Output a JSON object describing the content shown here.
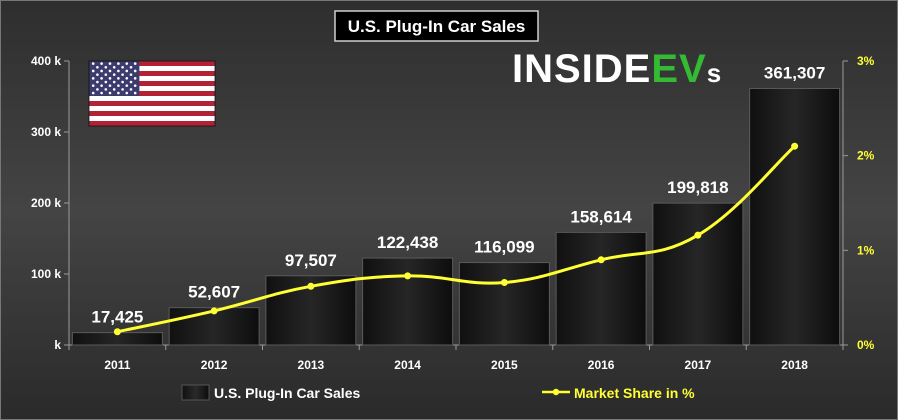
{
  "chart_data": {
    "type": "bar",
    "title": "U.S. Plug-In Car Sales",
    "logo": {
      "part1": "INSIDE",
      "part2": "EV",
      "part3": "s"
    },
    "flag": "us-flag",
    "categories": [
      "2011",
      "2012",
      "2013",
      "2014",
      "2015",
      "2016",
      "2017",
      "2018"
    ],
    "series": [
      {
        "name": "U.S. Plug-In Car Sales",
        "type": "bar",
        "axis": "left",
        "values": [
          17425,
          52607,
          97507,
          122438,
          116099,
          158614,
          199818,
          361307
        ],
        "labels": [
          "17,425",
          "52,607",
          "97,507",
          "122,438",
          "116,099",
          "158,614",
          "199,818",
          "361,307"
        ],
        "color": "#1c1c1c"
      },
      {
        "name": "Market Share in %",
        "type": "line",
        "axis": "right",
        "values": [
          0.14,
          0.36,
          0.62,
          0.73,
          0.66,
          0.9,
          1.16,
          2.1
        ],
        "color": "#ffff33"
      }
    ],
    "y_left": {
      "min": 0,
      "max": 400000,
      "ticks": [
        0,
        100000,
        200000,
        300000,
        400000
      ],
      "tick_labels": [
        "k",
        "100 k",
        "200 k",
        "300 k",
        "400 k"
      ]
    },
    "y_right": {
      "min": 0,
      "max": 3,
      "ticks": [
        0,
        1,
        2,
        3
      ],
      "tick_labels": [
        "0%",
        "1%",
        "2%",
        "3%"
      ]
    },
    "grid": false,
    "legend_position": "bottom",
    "colors": {
      "background": "#363636",
      "line": "#ffff33",
      "text": "#ffffff"
    }
  }
}
